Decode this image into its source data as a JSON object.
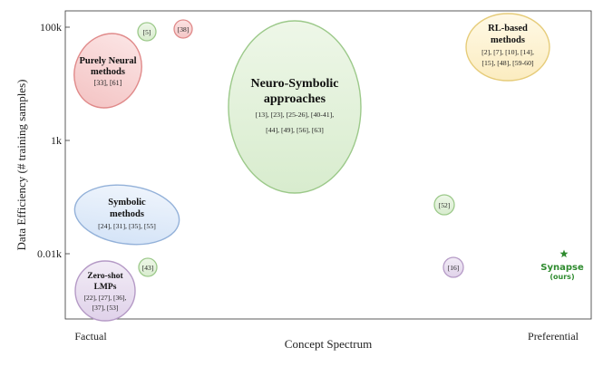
{
  "axes": {
    "x_label": "Concept Spectrum",
    "y_label": "Data Efficiency (# training samples)",
    "x_left_label": "Factual",
    "x_right_label": "Preferential",
    "y_ticks": [
      "100k",
      "1k",
      "0.01k"
    ]
  },
  "groups": {
    "purely_neural": {
      "title_line1": "Purely Neural",
      "title_line2": "methods",
      "refs": "[33], [61]",
      "color": "#e06666"
    },
    "neuro_symbolic": {
      "title_line1": "Neuro-Symbolic",
      "title_line2": "approaches",
      "refs_line1": "[13], [23], [25-26], [40-41],",
      "refs_line2": "[44], [49], [56], [63]",
      "color": "#82b366"
    },
    "rl_based": {
      "title_line1": "RL-based",
      "title_line2": "methods",
      "refs_line1": "[2], [7], [10], [14],",
      "refs_line2": "[15], [48], [59-60]",
      "color": "#d6b656"
    },
    "symbolic": {
      "title_line1": "Symbolic",
      "title_line2": "methods",
      "refs": "[24], [31], [35], [55]",
      "color": "#6c8ebf"
    },
    "zero_shot": {
      "title_line1": "Zero-shot",
      "title_line2": "LMPs",
      "refs_line1": "[22], [27], [36],",
      "refs_line2": "[37], [53]",
      "color": "#9673a6"
    }
  },
  "singletons": {
    "ref5": {
      "label": "[5]",
      "color": "#82b366"
    },
    "ref38": {
      "label": "[38]",
      "color": "#e06666"
    },
    "ref52": {
      "label": "[52]",
      "color": "#82b366"
    },
    "ref43": {
      "label": "[43]",
      "color": "#82b366"
    },
    "ref16": {
      "label": "[16]",
      "color": "#9673a6"
    }
  },
  "synapse": {
    "name": "Synapse",
    "note": "(ours)",
    "color": "#2e8b2e"
  }
}
